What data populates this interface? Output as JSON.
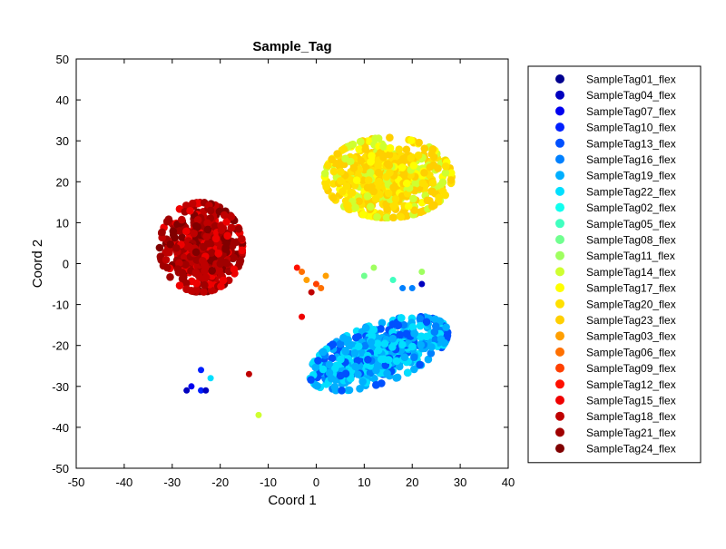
{
  "chart_data": {
    "type": "scatter",
    "title": "Sample_Tag",
    "xlabel": "Coord 1",
    "ylabel": "Coord 2",
    "xlim": [
      -50,
      40
    ],
    "ylim": [
      -50,
      50
    ],
    "xticks": [
      -50,
      -40,
      -30,
      -20,
      -10,
      0,
      10,
      20,
      30,
      40
    ],
    "yticks": [
      -50,
      -40,
      -30,
      -20,
      -10,
      0,
      10,
      20,
      30,
      40,
      50
    ],
    "grid": false,
    "legend_position": "right",
    "series": [
      {
        "name": "SampleTag01_flex",
        "color": "#00008F"
      },
      {
        "name": "SampleTag04_flex",
        "color": "#0000BF"
      },
      {
        "name": "SampleTag07_flex",
        "color": "#0000EF"
      },
      {
        "name": "SampleTag10_flex",
        "color": "#0020FF"
      },
      {
        "name": "SampleTag13_flex",
        "color": "#0050FF"
      },
      {
        "name": "SampleTag16_flex",
        "color": "#0080FF"
      },
      {
        "name": "SampleTag19_flex",
        "color": "#00AFFF"
      },
      {
        "name": "SampleTag22_flex",
        "color": "#00DFFF"
      },
      {
        "name": "SampleTag02_flex",
        "color": "#10FFEF"
      },
      {
        "name": "SampleTag05_flex",
        "color": "#40FFBF"
      },
      {
        "name": "SampleTag08_flex",
        "color": "#70FF8F"
      },
      {
        "name": "SampleTag11_flex",
        "color": "#9FFF60"
      },
      {
        "name": "SampleTag14_flex",
        "color": "#CFFF30"
      },
      {
        "name": "SampleTag17_flex",
        "color": "#FFFF00"
      },
      {
        "name": "SampleTag20_flex",
        "color": "#FFE000"
      },
      {
        "name": "SampleTag23_flex",
        "color": "#FFCF00"
      },
      {
        "name": "SampleTag03_flex",
        "color": "#FF9F00"
      },
      {
        "name": "SampleTag06_flex",
        "color": "#FF7000"
      },
      {
        "name": "SampleTag09_flex",
        "color": "#FF4000"
      },
      {
        "name": "SampleTag12_flex",
        "color": "#FF1000"
      },
      {
        "name": "SampleTag15_flex",
        "color": "#EF0000"
      },
      {
        "name": "SampleTag18_flex",
        "color": "#BF0000"
      },
      {
        "name": "SampleTag21_flex",
        "color": "#A00000"
      },
      {
        "name": "SampleTag24_flex",
        "color": "#800000"
      }
    ],
    "clusters": [
      {
        "center": [
          -24,
          4
        ],
        "spread": [
          7.5,
          9.5
        ],
        "n": 520,
        "colors": [
          "#A00000",
          "#BF0000",
          "#800000",
          "#EF0000",
          "#A00000",
          "#BF0000"
        ]
      },
      {
        "center": [
          15,
          21
        ],
        "spread": [
          11.5,
          8.5
        ],
        "n": 620,
        "colors": [
          "#FFCF00",
          "#FFE000",
          "#FFCF00",
          "#FFFF00",
          "#FFE000",
          "#CFFF30"
        ]
      },
      {
        "center": [
          13,
          -22
        ],
        "spread": [
          12.5,
          6.5
        ],
        "n": 560,
        "colors": [
          "#00AFFF",
          "#00DFFF",
          "#00AFFF",
          "#0080FF",
          "#00DFFF",
          "#0050FF"
        ]
      }
    ],
    "outliers": [
      {
        "x": -27,
        "y": -31,
        "color": "#0000BF"
      },
      {
        "x": -26,
        "y": -30,
        "color": "#0000EF"
      },
      {
        "x": -24,
        "y": -31,
        "color": "#0020FF"
      },
      {
        "x": -23,
        "y": -31,
        "color": "#0000BF"
      },
      {
        "x": -24,
        "y": -26,
        "color": "#0020FF"
      },
      {
        "x": -22,
        "y": -28,
        "color": "#00DFFF"
      },
      {
        "x": -4,
        "y": -1,
        "color": "#FF1000"
      },
      {
        "x": -3,
        "y": -2,
        "color": "#FF7000"
      },
      {
        "x": -2,
        "y": -4,
        "color": "#FF9F00"
      },
      {
        "x": 0,
        "y": -5,
        "color": "#FF4000"
      },
      {
        "x": 1,
        "y": -6,
        "color": "#FF7000"
      },
      {
        "x": 2,
        "y": -3,
        "color": "#FF9F00"
      },
      {
        "x": -1,
        "y": -7,
        "color": "#BF0000"
      },
      {
        "x": -3,
        "y": -13,
        "color": "#EF0000"
      },
      {
        "x": 16,
        "y": -4,
        "color": "#40FFBF"
      },
      {
        "x": 18,
        "y": -6,
        "color": "#0080FF"
      },
      {
        "x": 20,
        "y": -6,
        "color": "#0080FF"
      },
      {
        "x": 22,
        "y": -2,
        "color": "#9FFF60"
      },
      {
        "x": 22,
        "y": -5,
        "color": "#0000BF"
      },
      {
        "x": 10,
        "y": -3,
        "color": "#70FF8F"
      },
      {
        "x": 12,
        "y": -1,
        "color": "#9FFF60"
      },
      {
        "x": -12,
        "y": -37,
        "color": "#CFFF30"
      },
      {
        "x": -14,
        "y": -27,
        "color": "#BF0000"
      }
    ]
  }
}
